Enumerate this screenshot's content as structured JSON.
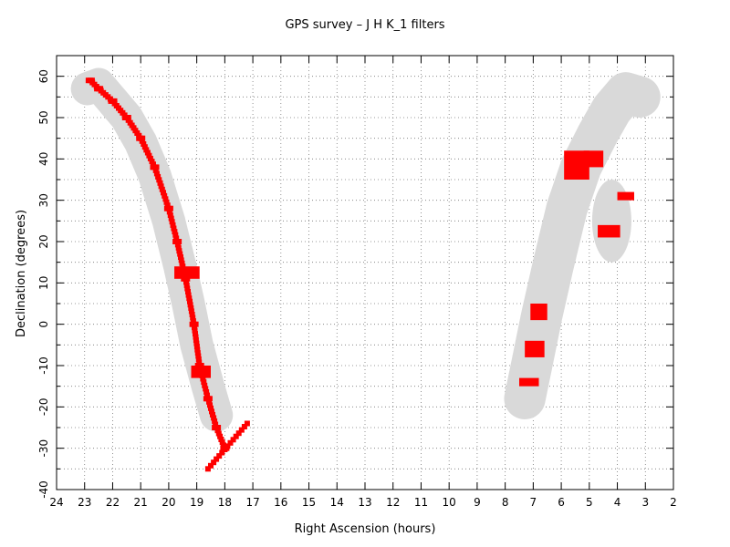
{
  "chart_data": {
    "type": "scatter",
    "title": "GPS survey – J H K_1  filters",
    "xlabel": "Right Ascension (hours)",
    "ylabel": "Declination (degrees)",
    "xlim": [
      24,
      2
    ],
    "ylim": [
      -40,
      65
    ],
    "x_ticks": [
      24,
      23,
      22,
      21,
      20,
      19,
      18,
      17,
      16,
      15,
      14,
      13,
      12,
      11,
      10,
      9,
      8,
      7,
      6,
      5,
      4,
      3,
      2
    ],
    "y_ticks": [
      60,
      50,
      40,
      30,
      20,
      10,
      0,
      -10,
      -20,
      -30,
      -40
    ],
    "grid": true,
    "colors": {
      "points": "#ff0000",
      "band": "#d9d9d9",
      "grid": "#777777",
      "frame": "#000000"
    },
    "series": [
      {
        "role": "galactic-plane-band",
        "shape": "band",
        "parts": [
          {
            "center": [
              [
                22.9,
                57
              ],
              [
                22.5,
                58
              ],
              [
                22.0,
                54
              ],
              [
                21.5,
                50
              ],
              [
                21.0,
                44
              ],
              [
                20.5,
                36
              ],
              [
                20.0,
                25
              ],
              [
                19.6,
                14
              ],
              [
                19.3,
                5
              ],
              [
                19.0,
                -5
              ],
              [
                18.6,
                -15
              ],
              [
                18.3,
                -22
              ]
            ],
            "halfwidth_deg": 4
          },
          {
            "center": [
              [
                7.3,
                -18
              ],
              [
                7.0,
                -8
              ],
              [
                6.7,
                2
              ],
              [
                6.3,
                14
              ],
              [
                5.8,
                28
              ],
              [
                5.3,
                38
              ],
              [
                4.7,
                46
              ],
              [
                4.2,
                52
              ],
              [
                3.7,
                56
              ],
              [
                3.2,
                55
              ]
            ],
            "halfwidth_deg": 5
          },
          {
            "ellipse_center": [
              4.2,
              25
            ],
            "ellipse_radii_hours_deg": [
              0.7,
              10
            ]
          }
        ]
      },
      {
        "role": "survey-fields",
        "shape": "points",
        "parts": [
          {
            "path": [
              [
                22.8,
                59
              ],
              [
                22.5,
                57
              ],
              [
                22.0,
                54
              ],
              [
                21.5,
                50
              ],
              [
                21.0,
                45
              ],
              [
                20.5,
                38
              ],
              [
                20.0,
                28
              ],
              [
                19.7,
                20
              ],
              [
                19.4,
                11
              ],
              [
                19.1,
                0
              ],
              [
                18.9,
                -10
              ],
              [
                18.6,
                -18
              ],
              [
                18.3,
                -25
              ],
              [
                18.0,
                -30
              ]
            ],
            "step": 0.6
          },
          {
            "rect": [
              19.8,
              11,
              18.9,
              14
            ]
          },
          {
            "rect": [
              19.2,
              -13,
              18.5,
              -10
            ]
          },
          {
            "line": [
              [
                17.2,
                -24
              ],
              [
                18.6,
                -35
              ]
            ],
            "step": 0.8
          },
          {
            "rect": [
              7.5,
              -15,
              6.8,
              -13
            ]
          },
          {
            "rect": [
              7.3,
              -8,
              6.6,
              -4
            ]
          },
          {
            "rect": [
              7.1,
              1,
              6.5,
              5
            ]
          },
          {
            "rect": [
              5.9,
              35,
              5.0,
              42
            ]
          },
          {
            "rect": [
              5.2,
              38,
              4.5,
              42
            ]
          },
          {
            "rect": [
              4.7,
              21,
              3.9,
              24
            ]
          },
          {
            "rect": [
              4.0,
              30,
              3.4,
              32
            ]
          }
        ]
      }
    ]
  }
}
